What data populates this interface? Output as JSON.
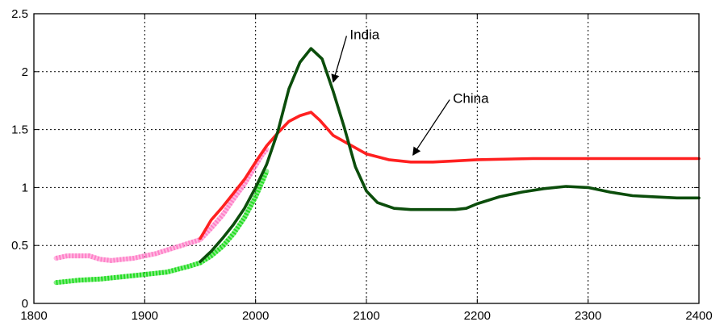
{
  "chart_data": {
    "type": "line",
    "xlim": [
      1800,
      2400
    ],
    "ylim": [
      0,
      2.5
    ],
    "grid": true,
    "x_ticks": [
      1800,
      1900,
      2000,
      2100,
      2200,
      2300,
      2400
    ],
    "y_ticks": [
      0,
      0.5,
      1,
      1.5,
      2,
      2.5
    ],
    "x_tick_labels": [
      "1800",
      "1900",
      "2000",
      "2100",
      "2200",
      "2300",
      "2400"
    ],
    "y_tick_labels": [
      "0",
      "0.5",
      "1",
      "1.5",
      "2",
      "2.5"
    ],
    "series": [
      {
        "color": "#ff80c8",
        "style": "thick-dotted",
        "points": [
          [
            1820,
            0.39
          ],
          [
            1830,
            0.41
          ],
          [
            1840,
            0.41
          ],
          [
            1850,
            0.41
          ],
          [
            1860,
            0.38
          ],
          [
            1870,
            0.37
          ],
          [
            1880,
            0.38
          ],
          [
            1890,
            0.39
          ],
          [
            1900,
            0.41
          ],
          [
            1910,
            0.43
          ],
          [
            1920,
            0.46
          ],
          [
            1930,
            0.49
          ],
          [
            1940,
            0.52
          ],
          [
            1950,
            0.55
          ],
          [
            1960,
            0.65
          ],
          [
            1970,
            0.76
          ],
          [
            1980,
            0.9
          ],
          [
            1990,
            1.03
          ],
          [
            2000,
            1.19
          ],
          [
            2005,
            1.27
          ],
          [
            2010,
            1.33
          ]
        ]
      },
      {
        "color": "#22dd22",
        "style": "thick-dotted",
        "points": [
          [
            1820,
            0.18
          ],
          [
            1840,
            0.2
          ],
          [
            1860,
            0.21
          ],
          [
            1880,
            0.23
          ],
          [
            1900,
            0.25
          ],
          [
            1920,
            0.27
          ],
          [
            1940,
            0.32
          ],
          [
            1950,
            0.35
          ],
          [
            1960,
            0.41
          ],
          [
            1970,
            0.49
          ],
          [
            1980,
            0.6
          ],
          [
            1990,
            0.74
          ],
          [
            2000,
            0.92
          ],
          [
            2010,
            1.14
          ]
        ]
      },
      {
        "name": "China",
        "color": "#ff2020",
        "style": "solid",
        "points": [
          [
            1950,
            0.56
          ],
          [
            1960,
            0.72
          ],
          [
            1970,
            0.83
          ],
          [
            1980,
            0.95
          ],
          [
            1990,
            1.07
          ],
          [
            2000,
            1.22
          ],
          [
            2010,
            1.36
          ],
          [
            2020,
            1.47
          ],
          [
            2030,
            1.57
          ],
          [
            2040,
            1.62
          ],
          [
            2050,
            1.65
          ],
          [
            2058,
            1.58
          ],
          [
            2070,
            1.45
          ],
          [
            2085,
            1.37
          ],
          [
            2100,
            1.29
          ],
          [
            2120,
            1.24
          ],
          [
            2140,
            1.22
          ],
          [
            2160,
            1.22
          ],
          [
            2180,
            1.23
          ],
          [
            2200,
            1.24
          ],
          [
            2250,
            1.25
          ],
          [
            2300,
            1.25
          ],
          [
            2350,
            1.25
          ],
          [
            2400,
            1.25
          ]
        ]
      },
      {
        "name": "India",
        "color": "#0b4d0b",
        "style": "solid",
        "points": [
          [
            1950,
            0.36
          ],
          [
            1960,
            0.45
          ],
          [
            1970,
            0.56
          ],
          [
            1980,
            0.68
          ],
          [
            1990,
            0.82
          ],
          [
            2000,
            1.0
          ],
          [
            2010,
            1.2
          ],
          [
            2020,
            1.48
          ],
          [
            2030,
            1.85
          ],
          [
            2040,
            2.08
          ],
          [
            2050,
            2.2
          ],
          [
            2060,
            2.11
          ],
          [
            2070,
            1.83
          ],
          [
            2080,
            1.52
          ],
          [
            2090,
            1.18
          ],
          [
            2100,
            0.97
          ],
          [
            2110,
            0.87
          ],
          [
            2125,
            0.82
          ],
          [
            2140,
            0.81
          ],
          [
            2160,
            0.81
          ],
          [
            2180,
            0.81
          ],
          [
            2190,
            0.82
          ],
          [
            2200,
            0.86
          ],
          [
            2220,
            0.92
          ],
          [
            2240,
            0.96
          ],
          [
            2260,
            0.99
          ],
          [
            2280,
            1.01
          ],
          [
            2300,
            1.0
          ],
          [
            2320,
            0.96
          ],
          [
            2340,
            0.93
          ],
          [
            2360,
            0.92
          ],
          [
            2380,
            0.91
          ],
          [
            2400,
            0.91
          ]
        ]
      }
    ],
    "annotations": [
      {
        "text": "India",
        "x": 2085,
        "y": 2.28,
        "arrow_to": [
          2070,
          1.91
        ]
      },
      {
        "text": "China",
        "x": 2178,
        "y": 1.73,
        "arrow_to": [
          2142,
          1.28
        ]
      }
    ]
  }
}
